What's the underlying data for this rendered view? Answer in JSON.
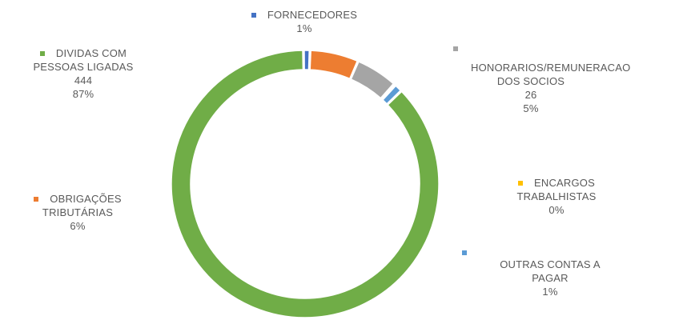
{
  "chart_data": {
    "type": "pie",
    "title": "",
    "categories": [
      "FORNECEDORES",
      "OBRIGAÇÕES TRIBUTÁRIAS",
      "HONORARIOS/REMUNERACAO DOS SOCIOS",
      "ENCARGOS TRABALHISTAS",
      "OUTRAS CONTAS A PAGAR",
      "DIVIDAS COM PESSOAS LIGADAS"
    ],
    "series": [
      {
        "values": [
          4,
          30,
          26,
          1,
          5,
          444
        ],
        "colors": [
          "#4472C4",
          "#ED7D31",
          "#A5A5A5",
          "#FFC000",
          "#5B9BD5",
          "#70AD47"
        ]
      }
    ],
    "labels": {
      "fornecedores": {
        "line1": "FORNECEDORES",
        "pct": "1%",
        "color": "#4472C4"
      },
      "obrigacoes": {
        "line1": "OBRIGAÇÕES",
        "line2": "TRIBUTÁRIAS",
        "pct": "6%",
        "color": "#ED7D31"
      },
      "honorarios": {
        "line1": "HONORARIOS/REMUNERACAO",
        "line2": "DOS SOCIOS",
        "value": "26",
        "pct": "5%",
        "color": "#A5A5A5"
      },
      "encargos": {
        "line1": "ENCARGOS",
        "line2": "TRABALHISTAS",
        "pct": "0%",
        "color": "#FFC000"
      },
      "outras": {
        "line1": "OUTRAS CONTAS A",
        "line2": "PAGAR",
        "pct": "1%",
        "color": "#5B9BD5"
      },
      "dividas": {
        "line1": "DIVIDAS COM",
        "line2": "PESSOAS LIGADAS",
        "value": "444",
        "pct": "87%",
        "color": "#70AD47"
      }
    }
  }
}
